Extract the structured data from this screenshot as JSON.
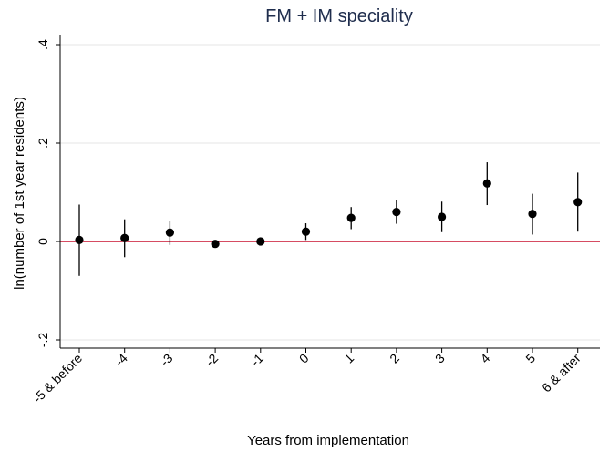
{
  "chart_data": {
    "type": "scatter",
    "title": "FM + IM speciality",
    "xlabel": "Years from implementation",
    "ylabel": "ln(number of 1st year residents)",
    "categories": [
      "-5 & before",
      "-4",
      "-3",
      "-2",
      "-1",
      "0",
      "1",
      "2",
      "3",
      "4",
      "5",
      "6 & after"
    ],
    "yticks": [
      {
        "value": -0.2,
        "label": "-.2"
      },
      {
        "value": 0,
        "label": "0"
      },
      {
        "value": 0.2,
        "label": ".2"
      },
      {
        "value": 0.4,
        "label": ".4"
      }
    ],
    "ylim": [
      -0.2,
      0.4
    ],
    "grid": true,
    "reference_line": {
      "y": 0,
      "color": "#c8102e"
    },
    "series": [
      {
        "values": [
          0.003,
          0.007,
          0.018,
          -0.005,
          0.0,
          0.02,
          0.048,
          0.06,
          0.05,
          0.118,
          0.056,
          0.08
        ],
        "ci_low": [
          -0.07,
          -0.032,
          -0.007,
          -0.013,
          -0.005,
          0.003,
          0.025,
          0.036,
          0.019,
          0.074,
          0.014,
          0.02
        ],
        "ci_high": [
          0.075,
          0.045,
          0.041,
          0.002,
          0.005,
          0.037,
          0.07,
          0.084,
          0.081,
          0.161,
          0.097,
          0.14
        ]
      }
    ],
    "colors": {
      "marker": "#000000",
      "reference": "#c8102e",
      "title": "#1f2d4d",
      "grid": "#e6e6e6"
    }
  }
}
